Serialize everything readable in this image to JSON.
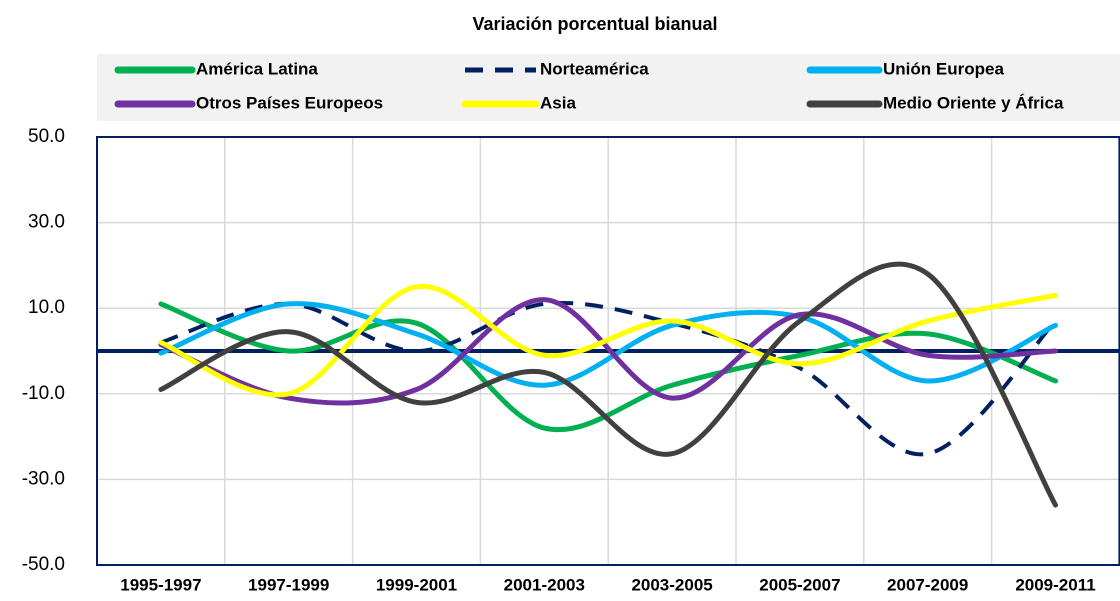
{
  "chart_data": {
    "type": "line",
    "title": "Variación porcentual bianual",
    "categories": [
      "1995-1997",
      "1997-1999",
      "1999-2001",
      "2001-2003",
      "2003-2005",
      "2005-2007",
      "2007-2009",
      "2009-2011"
    ],
    "series": [
      {
        "name": "América Latina",
        "color": "#00b050",
        "values": [
          11,
          0,
          6.5,
          -18,
          -8,
          -1,
          4,
          -7
        ]
      },
      {
        "name": "Norteamérica",
        "color": "#002060",
        "dashed": true,
        "values": [
          2,
          11,
          0,
          11,
          6.5,
          -4,
          -24,
          7
        ]
      },
      {
        "name": "Unión Europea",
        "color": "#00b0f0",
        "values": [
          -0.5,
          11,
          4,
          -8,
          6,
          8,
          -7,
          6
        ]
      },
      {
        "name": "Otros Países Europeos",
        "color": "#7030a0",
        "values": [
          1.5,
          -11,
          -9,
          12,
          -11,
          8.5,
          -1,
          0
        ]
      },
      {
        "name": "Asia",
        "color": "#ffff00",
        "values": [
          2,
          -10,
          15,
          -1,
          7,
          -3,
          7,
          13
        ]
      },
      {
        "name": "Medio Oriente y África",
        "color": "#404040",
        "values": [
          -9,
          4.5,
          -12,
          -5,
          -24,
          7,
          18,
          -36
        ]
      }
    ],
    "ylim": [
      -50,
      50
    ],
    "yticks": [
      {
        "value": -50,
        "label": "-50.0"
      },
      {
        "value": -30,
        "label": "-30.0"
      },
      {
        "value": -10,
        "label": "-10.0"
      },
      {
        "value": 10,
        "label": "10.0"
      },
      {
        "value": 30,
        "label": "30.0"
      },
      {
        "value": 50,
        "label": "50.0"
      }
    ],
    "grid": true,
    "legend": "top"
  }
}
